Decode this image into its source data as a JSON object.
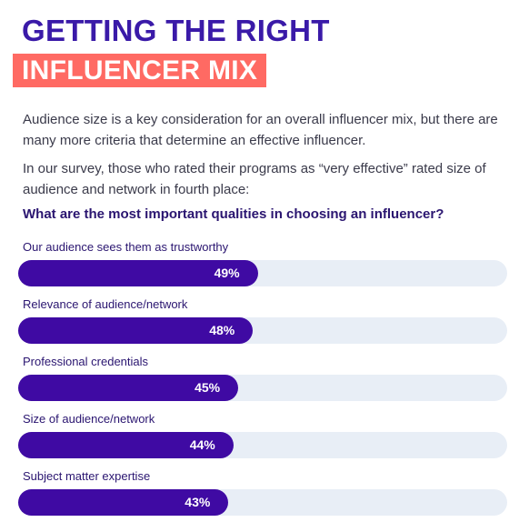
{
  "header": {
    "title_line1": "GETTING THE RIGHT",
    "title_line2": "INFLUENCER MIX"
  },
  "body": {
    "paragraph1": "Audience size is a key consideration for an overall influencer mix, but there are many more criteria that determine an effective influencer.",
    "paragraph2": "In our survey, those who rated their programs as “very effective” rated size of audience and network in fourth place:",
    "question": "What are the most important qualities in choosing an influencer?"
  },
  "colors": {
    "title": "#3a1aa8",
    "highlight": "#ff6a63",
    "bar_fill": "#3f0aa3",
    "bar_track": "#e8eef6"
  },
  "chart_data": {
    "type": "bar",
    "orientation": "horizontal",
    "title": "What are the most important qualities in choosing an influencer?",
    "categories": [
      "Our audience sees them as trustworthy",
      "Relevance of audience/network",
      "Professional credentials",
      "Size of audience/network",
      "Subject matter expertise"
    ],
    "values": [
      49,
      48,
      45,
      44,
      43
    ],
    "value_labels": [
      "49%",
      "48%",
      "45%",
      "44%",
      "43%"
    ],
    "xlim": [
      0,
      100
    ],
    "grid": false,
    "legend": "none"
  }
}
